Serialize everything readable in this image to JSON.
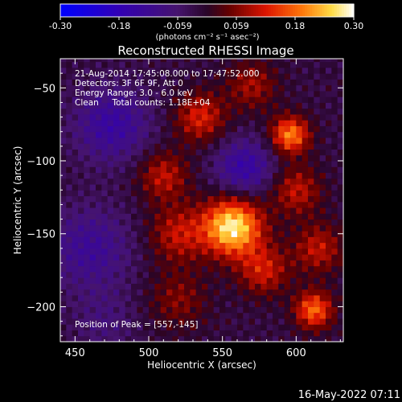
{
  "chart_data": {
    "type": "heatmap",
    "title": "Reconstructed RHESSI Image",
    "xlabel": "Heliocentric X (arcsec)",
    "ylabel": "Heliocentric Y (arcsec)",
    "xlim": [
      440,
      632
    ],
    "ylim": [
      -224,
      -30
    ],
    "xticks": [
      450,
      500,
      550,
      600
    ],
    "yticks": [
      -50,
      -100,
      -150,
      -200
    ],
    "colorbar": {
      "min": -0.3,
      "max": 0.3,
      "tick_labels": [
        "-0.30",
        "-0.18",
        "-0.059",
        "0.059",
        "0.18",
        "0.30"
      ],
      "unit_label": "(photons cm⁻² s⁻¹ asec⁻²)"
    },
    "info_lines": [
      "21-Aug-2014 17:45:08.000 to 17:47:52.000",
      "Detectors: 3F 6F 9F, Att 0",
      "Energy Range: 3.0 - 6.0 keV",
      "Clean     Total counts: 1.18E+04"
    ],
    "peak_label": "Position of Peak = [557,-145]",
    "peak": {
      "x": 557,
      "y": -145
    },
    "sources": [
      {
        "x": 557,
        "y": -145,
        "value": 0.3,
        "sigma": 14
      },
      {
        "x": 596,
        "y": -82,
        "value": 0.22,
        "sigma": 9
      },
      {
        "x": 612,
        "y": -202,
        "value": 0.2,
        "sigma": 9
      },
      {
        "x": 615,
        "y": -160,
        "value": 0.12,
        "sigma": 12
      },
      {
        "x": 535,
        "y": -70,
        "value": 0.14,
        "sigma": 12
      },
      {
        "x": 510,
        "y": -110,
        "value": 0.12,
        "sigma": 12
      },
      {
        "x": 520,
        "y": -150,
        "value": 0.12,
        "sigma": 14
      },
      {
        "x": 578,
        "y": -175,
        "value": 0.13,
        "sigma": 12
      },
      {
        "x": 600,
        "y": -120,
        "value": 0.12,
        "sigma": 12
      },
      {
        "x": 520,
        "y": -195,
        "value": 0.08,
        "sigma": 14
      },
      {
        "x": 570,
        "y": -48,
        "value": 0.1,
        "sigma": 12
      },
      {
        "x": 565,
        "y": -105,
        "value": -0.13,
        "sigma": 14
      },
      {
        "x": 475,
        "y": -75,
        "value": -0.12,
        "sigma": 18
      },
      {
        "x": 460,
        "y": -160,
        "value": -0.1,
        "sigma": 20
      },
      {
        "x": 470,
        "y": -210,
        "value": -0.05,
        "sigma": 15
      }
    ]
  },
  "footer": {
    "timestamp": "16-May-2022 07:11"
  }
}
